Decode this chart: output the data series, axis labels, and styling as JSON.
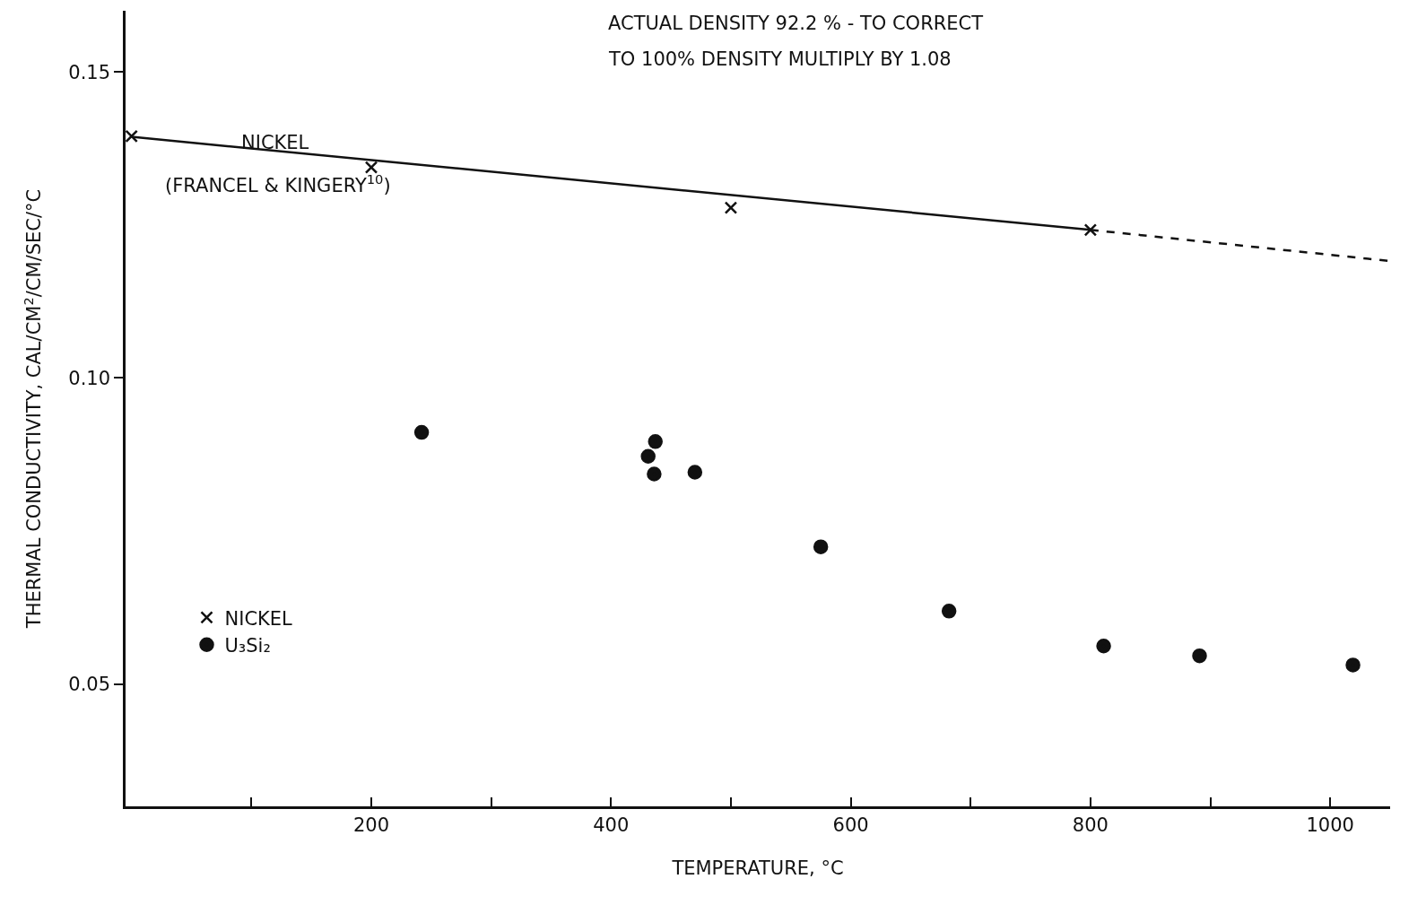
{
  "chart_data": {
    "type": "scatter",
    "xlabel": "TEMPERATURE, °C",
    "ylabel": "THERMAL CONDUCTIVITY, CAL/CM$^{2}$/CM/SEC/°C",
    "xlim": [
      -5,
      1050
    ],
    "ylim": [
      0.03,
      0.16
    ],
    "xticks": [
      {
        "value": 100,
        "label": null
      },
      200,
      {
        "value": 300,
        "label": null
      },
      400,
      {
        "value": 500,
        "label": null
      },
      600,
      {
        "value": 700,
        "label": null
      },
      800,
      {
        "value": 900,
        "label": null
      },
      1000
    ],
    "yticks": [
      0.05,
      {
        "value": 0.1,
        "label": "0.10"
      },
      0.15
    ],
    "grid": false,
    "legend": "bottom left",
    "annotations": [
      "ACTUAL DENSITY 92.2 % - TO CORRECT",
      "TO 100% DENSITY MULTIPLY BY 1.08",
      "NICKEL",
      "(FRANCEL & KINGERY$^{10}$)"
    ],
    "series": [
      {
        "name": "NICKEL",
        "color": "#111111",
        "marker": "cross",
        "x": [
          0,
          200,
          500,
          800
        ],
        "values": [
          0.1395,
          0.1344,
          0.1278,
          0.1242
        ]
      },
      {
        "name": "U₃Si₂",
        "color": "#111111",
        "marker": "circle",
        "x": [
          242,
          431,
          437,
          436,
          470,
          575,
          682,
          811,
          891,
          1019
        ],
        "values": [
          0.0911,
          0.0872,
          0.0896,
          0.0843,
          0.0846,
          0.0724,
          0.0619,
          0.0562,
          0.0546,
          0.0531
        ]
      },
      {
        "type": "line",
        "color": "#111111",
        "marker": "none",
        "line_style": "solid",
        "x": [
          0,
          800
        ],
        "values": [
          0.1394,
          0.1242
        ]
      },
      {
        "type": "line",
        "color": "#111111",
        "marker": "none",
        "line_style": "dashed",
        "x": [
          800,
          1050
        ],
        "values": [
          0.1242,
          0.1191
        ]
      }
    ]
  }
}
